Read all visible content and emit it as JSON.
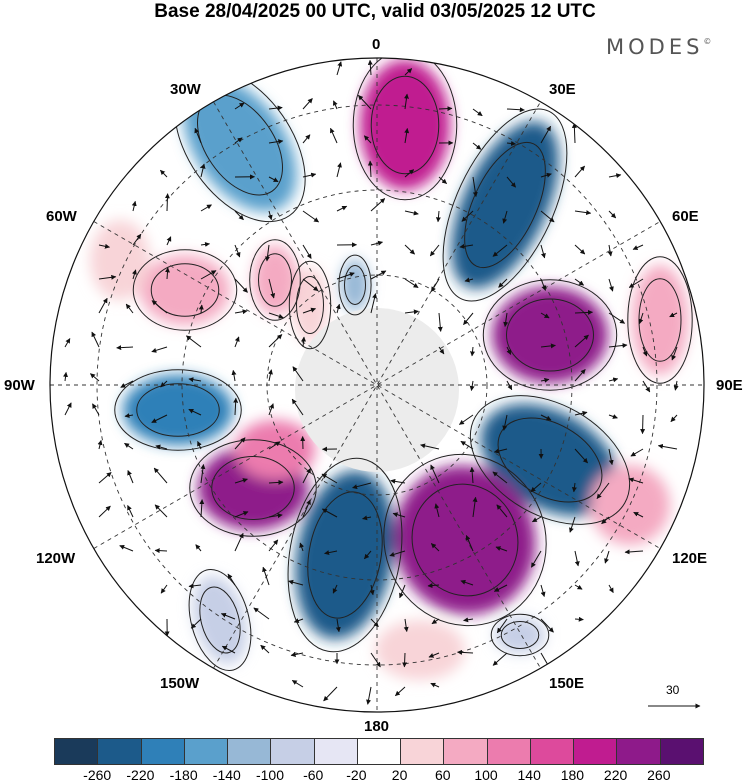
{
  "title": "Base 28/04/2025 00 UTC, valid 03/05/2025 12 UTC",
  "brand": "MODES",
  "brand_mark": "©",
  "longitudes": {
    "top": "0",
    "bottom": "180",
    "left": "90W",
    "right": "90E",
    "tl30": "30W",
    "tl60": "60W",
    "tr30": "30E",
    "tr60": "60E",
    "bl120": "120W",
    "bl150": "150W",
    "br120": "120E",
    "br150": "150E"
  },
  "vector_scale_label": "30",
  "colorbar": {
    "colors": [
      "#1a3a5a",
      "#1c5a8a",
      "#2f80b8",
      "#5aa0cc",
      "#97b8d6",
      "#c6cfe6",
      "#e6e6f4",
      "#ffffff",
      "#f8d4d8",
      "#f4aac2",
      "#ec7cae",
      "#dd4a9c",
      "#c01c90",
      "#8e1a8a",
      "#5a1070"
    ],
    "ticks": [
      "-260",
      "-220",
      "-180",
      "-140",
      "-100",
      "-60",
      "-20",
      "20",
      "60",
      "100",
      "140",
      "180",
      "220",
      "260"
    ]
  }
}
